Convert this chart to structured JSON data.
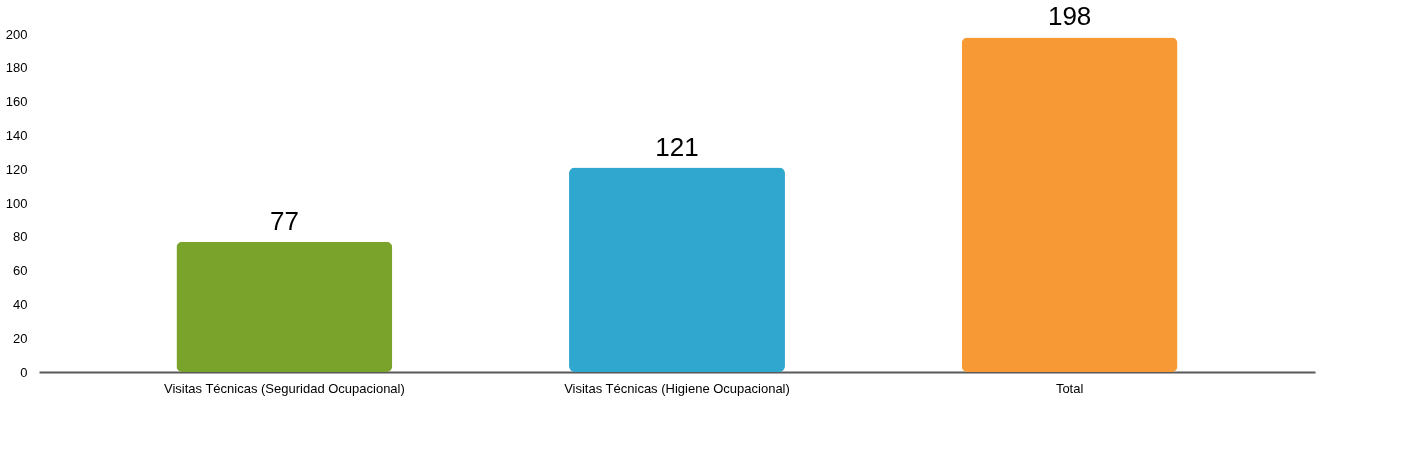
{
  "chart_data": {
    "type": "bar",
    "categories": [
      "Visitas Técnicas (Seguridad Ocupacional)",
      "Visitas Técnicas (Higiene Ocupacional)",
      "Total"
    ],
    "values": [
      77,
      121,
      198
    ],
    "colors": [
      "#7aa32b",
      "#2fa7cf",
      "#f79a35"
    ],
    "ylim": [
      0,
      200
    ],
    "yticks": [
      0,
      20,
      40,
      60,
      80,
      100,
      120,
      140,
      160,
      180,
      200
    ],
    "data_labels": true,
    "grid": false
  }
}
